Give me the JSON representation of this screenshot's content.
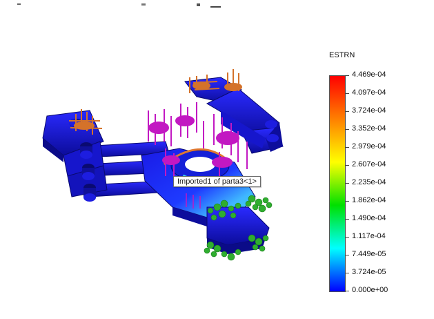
{
  "tooltip": {
    "text": "Imported1 of parta3<1>"
  },
  "legend": {
    "title": "ESTRN",
    "labels": [
      "4.469e-04",
      "4.097e-04",
      "3.724e-04",
      "3.352e-04",
      "2.979e-04",
      "2.607e-04",
      "2.235e-04",
      "1.862e-04",
      "1.490e-04",
      "1.117e-04",
      "7.449e-05",
      "3.724e-05",
      "0.000e+00"
    ],
    "colors": [
      "#ff0000",
      "#ff8000",
      "#ffff00",
      "#00e000",
      "#00ffff",
      "#0000ff"
    ]
  },
  "colors": {
    "model_blue": "#1a1ae6",
    "model_blue_dark": "#0d0d9c",
    "fixture_orange": "#d4722a",
    "load_magenta": "#c218c2",
    "contact_green": "#2fae2f",
    "stress_cyan": "#3fd6e8"
  }
}
